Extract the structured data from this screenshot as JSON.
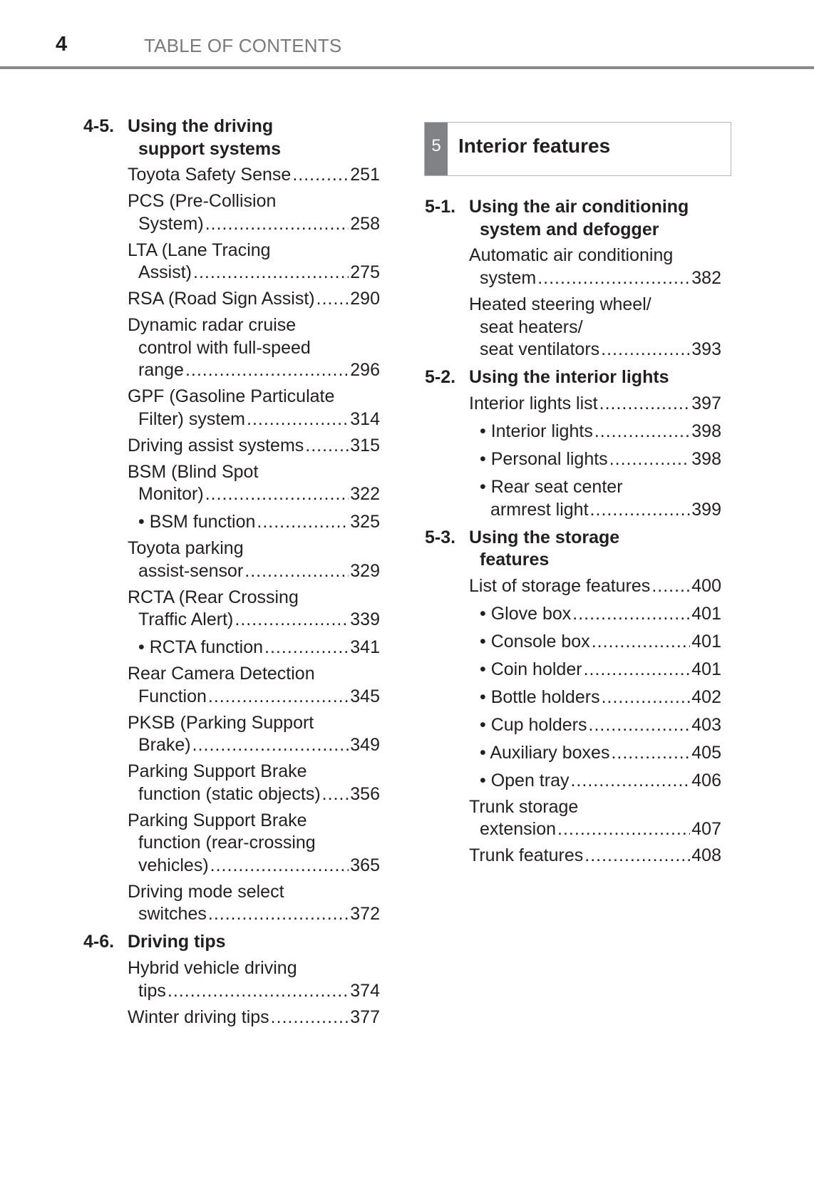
{
  "header": {
    "page_number": "4",
    "title": "TABLE OF CONTENTS"
  },
  "chapter": {
    "number": "5",
    "title": "Interior features",
    "strip_color": "#808285"
  },
  "left_column": [
    {
      "num": "4-5.",
      "title": [
        "Using the driving",
        "support systems"
      ],
      "entries": [
        {
          "lines": [
            "Toyota Safety Sense"
          ],
          "page": "251"
        },
        {
          "lines": [
            "PCS (Pre-Collision",
            "System)"
          ],
          "page": "258"
        },
        {
          "lines": [
            "LTA (Lane Tracing",
            "Assist)"
          ],
          "page": "275"
        },
        {
          "lines": [
            "RSA (Road Sign Assist)"
          ],
          "page": "290"
        },
        {
          "lines": [
            "Dynamic radar cruise",
            "control with full-speed",
            "range"
          ],
          "page": "296"
        },
        {
          "lines": [
            "GPF (Gasoline Particulate",
            "Filter) system"
          ],
          "page": "314"
        },
        {
          "lines": [
            "Driving assist systems"
          ],
          "page": "315"
        },
        {
          "lines": [
            "BSM (Blind Spot",
            "Monitor)"
          ],
          "page": "322"
        },
        {
          "lines": [
            "• BSM function"
          ],
          "page": "325",
          "bullet": true
        },
        {
          "lines": [
            "Toyota parking",
            "assist-sensor"
          ],
          "page": "329"
        },
        {
          "lines": [
            "RCTA (Rear Crossing",
            "Traffic Alert)"
          ],
          "page": "339"
        },
        {
          "lines": [
            "• RCTA function"
          ],
          "page": "341",
          "bullet": true
        },
        {
          "lines": [
            "Rear Camera Detection",
            "Function"
          ],
          "page": "345"
        },
        {
          "lines": [
            "PKSB (Parking Support",
            "Brake)"
          ],
          "page": "349"
        },
        {
          "lines": [
            "Parking Support Brake",
            "function (static objects)"
          ],
          "page": "356"
        },
        {
          "lines": [
            "Parking Support Brake",
            "function (rear-crossing",
            "vehicles)"
          ],
          "page": "365"
        },
        {
          "lines": [
            "Driving mode select",
            "switches"
          ],
          "page": "372"
        }
      ]
    },
    {
      "num": "4-6.",
      "title": [
        "Driving tips"
      ],
      "entries": [
        {
          "lines": [
            "Hybrid vehicle driving",
            "tips"
          ],
          "page": "374"
        },
        {
          "lines": [
            "Winter driving tips"
          ],
          "page": "377"
        }
      ]
    }
  ],
  "right_column": [
    {
      "num": "5-1.",
      "title": [
        "Using the air conditioning",
        "system and defogger"
      ],
      "entries": [
        {
          "lines": [
            "Automatic air conditioning",
            "system"
          ],
          "page": "382"
        },
        {
          "lines": [
            "Heated steering wheel/",
            "seat heaters/",
            "seat ventilators"
          ],
          "page": "393"
        }
      ]
    },
    {
      "num": "5-2.",
      "title": [
        "Using the interior lights"
      ],
      "entries": [
        {
          "lines": [
            "Interior lights list"
          ],
          "page": "397"
        },
        {
          "lines": [
            "• Interior lights"
          ],
          "page": "398",
          "bullet": true
        },
        {
          "lines": [
            "• Personal lights"
          ],
          "page": "398",
          "bullet": true
        },
        {
          "lines": [
            "• Rear seat center",
            "armrest light"
          ],
          "page": "399",
          "bullet": true
        }
      ]
    },
    {
      "num": "5-3.",
      "title": [
        "Using the storage",
        "features"
      ],
      "entries": [
        {
          "lines": [
            "List of storage features"
          ],
          "page": "400"
        },
        {
          "lines": [
            "• Glove box"
          ],
          "page": "401",
          "bullet": true
        },
        {
          "lines": [
            "• Console box"
          ],
          "page": "401",
          "bullet": true
        },
        {
          "lines": [
            "• Coin holder"
          ],
          "page": "401",
          "bullet": true
        },
        {
          "lines": [
            "• Bottle holders"
          ],
          "page": "402",
          "bullet": true
        },
        {
          "lines": [
            "• Cup holders"
          ],
          "page": "403",
          "bullet": true
        },
        {
          "lines": [
            "• Auxiliary boxes"
          ],
          "page": "405",
          "bullet": true
        },
        {
          "lines": [
            "• Open tray"
          ],
          "page": "406",
          "bullet": true
        },
        {
          "lines": [
            "Trunk storage",
            "extension"
          ],
          "page": "407"
        },
        {
          "lines": [
            "Trunk features"
          ],
          "page": "408"
        }
      ]
    }
  ]
}
